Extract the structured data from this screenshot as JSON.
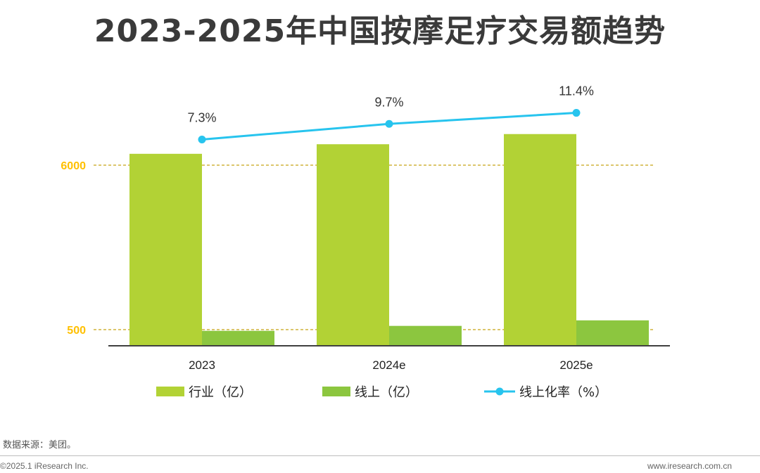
{
  "title": "2023-2025年中国按摩足疗交易额趋势",
  "source": "数据来源：美团。",
  "copyright": "©2025.1 iResearch Inc.",
  "website": "www.iresearch.com.cn",
  "colors": {
    "industry": "#b2d235",
    "online": "#8cc63f",
    "rate": "#27c4ee",
    "refline": "#c8a415",
    "reflabel": "#ffc000",
    "axis": "#404040"
  },
  "chart_data": {
    "type": "bar",
    "categories": [
      "2023",
      "2024e",
      "2025e"
    ],
    "series": [
      {
        "name": "行业（亿）",
        "type": "bar",
        "values": [
          6380,
          6700,
          7040
        ]
      },
      {
        "name": "线上（亿）",
        "type": "bar",
        "values": [
          460,
          625,
          810
        ]
      },
      {
        "name": "线上化率（%）",
        "type": "line",
        "values": [
          7.3,
          9.7,
          11.4
        ],
        "labels": [
          "7.3%",
          "9.7%",
          "11.4%"
        ]
      }
    ],
    "reference_lines": [
      {
        "value": 6000,
        "label": "6000"
      },
      {
        "value": 500,
        "label": "500"
      }
    ],
    "legend": {
      "position": "bottom"
    },
    "grid": false
  }
}
